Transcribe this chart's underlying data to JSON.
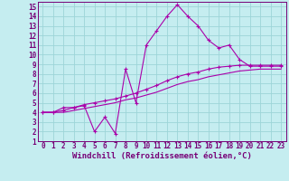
{
  "xlabel": "Windchill (Refroidissement éolien,°C)",
  "xlim": [
    -0.5,
    23.5
  ],
  "ylim": [
    1,
    15.5
  ],
  "xticks": [
    0,
    1,
    2,
    3,
    4,
    5,
    6,
    7,
    8,
    9,
    10,
    11,
    12,
    13,
    14,
    15,
    16,
    17,
    18,
    19,
    20,
    21,
    22,
    23
  ],
  "yticks": [
    1,
    2,
    3,
    4,
    5,
    6,
    7,
    8,
    9,
    10,
    11,
    12,
    13,
    14,
    15
  ],
  "bg_color": "#c5edf0",
  "grid_color": "#9dd4d8",
  "line_color": "#aa00aa",
  "line_color_dark": "#770077",
  "line1_x": [
    0,
    1,
    2,
    3,
    4,
    5,
    6,
    7,
    8,
    9,
    10,
    11,
    12,
    13,
    14,
    15,
    16,
    17,
    18,
    19,
    20,
    21,
    22,
    23
  ],
  "line1_y": [
    4,
    4,
    4.5,
    4.5,
    4.7,
    2.0,
    3.5,
    1.8,
    8.5,
    5.0,
    11,
    12.5,
    14.0,
    15.2,
    14.0,
    13.0,
    11.5,
    10.7,
    11.0,
    9.5,
    8.8,
    8.8,
    8.8,
    8.8
  ],
  "line2_x": [
    0,
    1,
    2,
    3,
    4,
    5,
    6,
    7,
    8,
    9,
    10,
    11,
    12,
    13,
    14,
    15,
    16,
    17,
    18,
    19,
    20,
    21,
    22,
    23
  ],
  "line2_y": [
    4,
    4,
    4.2,
    4.5,
    4.8,
    5.0,
    5.2,
    5.4,
    5.7,
    6.0,
    6.4,
    6.8,
    7.3,
    7.7,
    8.0,
    8.2,
    8.5,
    8.7,
    8.8,
    8.9,
    8.9,
    8.9,
    8.9,
    8.9
  ],
  "line3_x": [
    0,
    1,
    2,
    3,
    4,
    5,
    6,
    7,
    8,
    9,
    10,
    11,
    12,
    13,
    14,
    15,
    16,
    17,
    18,
    19,
    20,
    21,
    22,
    23
  ],
  "line3_y": [
    4,
    4,
    4.0,
    4.2,
    4.4,
    4.6,
    4.8,
    5.0,
    5.3,
    5.5,
    5.8,
    6.1,
    6.5,
    6.9,
    7.2,
    7.4,
    7.7,
    7.9,
    8.1,
    8.3,
    8.4,
    8.5,
    8.5,
    8.5
  ],
  "tick_fontsize": 5.5,
  "xlabel_fontsize": 6.5
}
